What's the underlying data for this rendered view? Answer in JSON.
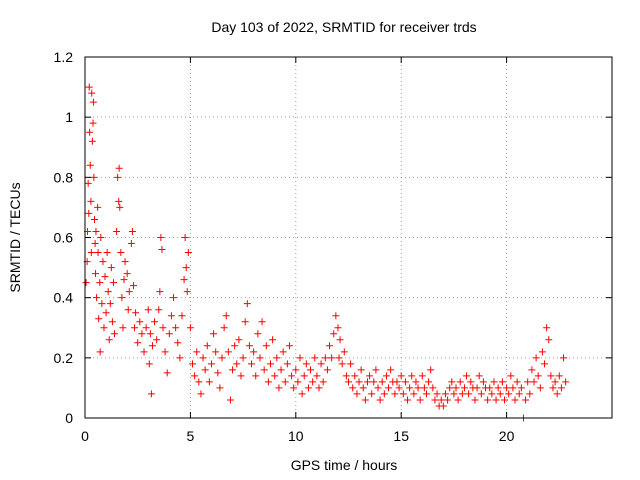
{
  "chart_data": {
    "type": "scatter",
    "title": "Day 103 of 2022, SRMTID for receiver trds",
    "xlabel": "GPS time / hours",
    "ylabel": "SRMTID / TECUs",
    "xlim": [
      0,
      25
    ],
    "ylim": [
      0,
      1.2
    ],
    "xticks": [
      0,
      5,
      10,
      15,
      20
    ],
    "xtick_labels": [
      "0",
      "5",
      "10",
      "15",
      "20"
    ],
    "yticks": [
      0,
      0.2,
      0.4,
      0.6,
      0.8,
      1.0,
      1.2
    ],
    "ytick_labels": [
      "0",
      "0.2",
      "0.4",
      "0.6",
      "0.8",
      "1",
      "1.2"
    ],
    "grid": true,
    "marker": "plus",
    "color": "#ff0000",
    "series": [
      {
        "name": "SRMTID",
        "points": [
          [
            0.05,
            0.45
          ],
          [
            0.1,
            0.52
          ],
          [
            0.12,
            0.62
          ],
          [
            0.15,
            0.78
          ],
          [
            0.18,
            0.68
          ],
          [
            0.2,
            1.1
          ],
          [
            0.22,
            0.95
          ],
          [
            0.25,
            0.84
          ],
          [
            0.28,
            0.72
          ],
          [
            0.3,
            0.55
          ],
          [
            0.32,
            1.08
          ],
          [
            0.35,
            0.92
          ],
          [
            0.38,
            0.98
          ],
          [
            0.4,
            1.05
          ],
          [
            0.42,
            0.8
          ],
          [
            0.45,
            0.66
          ],
          [
            0.48,
            0.58
          ],
          [
            0.5,
            0.48
          ],
          [
            0.52,
            0.62
          ],
          [
            0.55,
            0.4
          ],
          [
            0.6,
            0.7
          ],
          [
            0.62,
            0.55
          ],
          [
            0.65,
            0.33
          ],
          [
            0.7,
            0.45
          ],
          [
            0.72,
            0.22
          ],
          [
            0.75,
            0.6
          ],
          [
            0.8,
            0.38
          ],
          [
            0.85,
            0.52
          ],
          [
            0.9,
            0.3
          ],
          [
            0.95,
            0.47
          ],
          [
            1.0,
            0.35
          ],
          [
            1.05,
            0.55
          ],
          [
            1.1,
            0.42
          ],
          [
            1.15,
            0.26
          ],
          [
            1.2,
            0.38
          ],
          [
            1.25,
            0.5
          ],
          [
            1.3,
            0.32
          ],
          [
            1.35,
            0.45
          ],
          [
            1.4,
            0.28
          ],
          [
            1.5,
            0.62
          ],
          [
            1.55,
            0.8
          ],
          [
            1.6,
            0.72
          ],
          [
            1.62,
            0.83
          ],
          [
            1.65,
            0.7
          ],
          [
            1.7,
            0.55
          ],
          [
            1.75,
            0.4
          ],
          [
            1.8,
            0.3
          ],
          [
            1.85,
            0.46
          ],
          [
            1.9,
            0.52
          ],
          [
            2.0,
            0.48
          ],
          [
            2.05,
            0.36
          ],
          [
            2.1,
            0.42
          ],
          [
            2.2,
            0.58
          ],
          [
            2.25,
            0.62
          ],
          [
            2.3,
            0.44
          ],
          [
            2.35,
            0.3
          ],
          [
            2.4,
            0.35
          ],
          [
            2.5,
            0.25
          ],
          [
            2.6,
            0.32
          ],
          [
            2.7,
            0.28
          ],
          [
            2.8,
            0.22
          ],
          [
            2.9,
            0.3
          ],
          [
            3.0,
            0.36
          ],
          [
            3.05,
            0.18
          ],
          [
            3.1,
            0.28
          ],
          [
            3.15,
            0.08
          ],
          [
            3.2,
            0.24
          ],
          [
            3.3,
            0.32
          ],
          [
            3.4,
            0.26
          ],
          [
            3.5,
            0.36
          ],
          [
            3.55,
            0.42
          ],
          [
            3.6,
            0.6
          ],
          [
            3.65,
            0.56
          ],
          [
            3.7,
            0.3
          ],
          [
            3.8,
            0.22
          ],
          [
            3.9,
            0.15
          ],
          [
            4.0,
            0.28
          ],
          [
            4.1,
            0.34
          ],
          [
            4.2,
            0.4
          ],
          [
            4.3,
            0.3
          ],
          [
            4.4,
            0.25
          ],
          [
            4.5,
            0.2
          ],
          [
            4.6,
            0.34
          ],
          [
            4.7,
            0.46
          ],
          [
            4.75,
            0.6
          ],
          [
            4.8,
            0.5
          ],
          [
            4.85,
            0.42
          ],
          [
            4.9,
            0.55
          ],
          [
            5.0,
            0.3
          ],
          [
            5.1,
            0.18
          ],
          [
            5.2,
            0.14
          ],
          [
            5.3,
            0.22
          ],
          [
            5.4,
            0.12
          ],
          [
            5.5,
            0.08
          ],
          [
            5.6,
            0.2
          ],
          [
            5.7,
            0.16
          ],
          [
            5.8,
            0.24
          ],
          [
            5.9,
            0.12
          ],
          [
            6.0,
            0.18
          ],
          [
            6.1,
            0.28
          ],
          [
            6.2,
            0.22
          ],
          [
            6.3,
            0.15
          ],
          [
            6.4,
            0.1
          ],
          [
            6.5,
            0.2
          ],
          [
            6.6,
            0.3
          ],
          [
            6.7,
            0.34
          ],
          [
            6.8,
            0.22
          ],
          [
            6.9,
            0.06
          ],
          [
            7.0,
            0.16
          ],
          [
            7.1,
            0.24
          ],
          [
            7.2,
            0.18
          ],
          [
            7.3,
            0.26
          ],
          [
            7.4,
            0.14
          ],
          [
            7.5,
            0.2
          ],
          [
            7.6,
            0.32
          ],
          [
            7.7,
            0.38
          ],
          [
            7.8,
            0.24
          ],
          [
            7.9,
            0.18
          ],
          [
            8.0,
            0.22
          ],
          [
            8.1,
            0.14
          ],
          [
            8.2,
            0.28
          ],
          [
            8.3,
            0.2
          ],
          [
            8.4,
            0.32
          ],
          [
            8.5,
            0.16
          ],
          [
            8.6,
            0.24
          ],
          [
            8.7,
            0.12
          ],
          [
            8.8,
            0.18
          ],
          [
            8.9,
            0.26
          ],
          [
            9.0,
            0.14
          ],
          [
            9.1,
            0.2
          ],
          [
            9.2,
            0.1
          ],
          [
            9.3,
            0.16
          ],
          [
            9.4,
            0.22
          ],
          [
            9.5,
            0.12
          ],
          [
            9.6,
            0.18
          ],
          [
            9.7,
            0.24
          ],
          [
            9.8,
            0.14
          ],
          [
            9.9,
            0.1
          ],
          [
            10.0,
            0.16
          ],
          [
            10.1,
            0.12
          ],
          [
            10.2,
            0.2
          ],
          [
            10.3,
            0.08
          ],
          [
            10.4,
            0.14
          ],
          [
            10.5,
            0.18
          ],
          [
            10.6,
            0.1
          ],
          [
            10.7,
            0.16
          ],
          [
            10.8,
            0.12
          ],
          [
            10.9,
            0.2
          ],
          [
            11.0,
            0.14
          ],
          [
            11.1,
            0.1
          ],
          [
            11.2,
            0.18
          ],
          [
            11.3,
            0.12
          ],
          [
            11.4,
            0.2
          ],
          [
            11.5,
            0.16
          ],
          [
            11.6,
            0.24
          ],
          [
            11.7,
            0.2
          ],
          [
            11.8,
            0.28
          ],
          [
            11.9,
            0.34
          ],
          [
            12.0,
            0.3
          ],
          [
            12.05,
            0.2
          ],
          [
            12.1,
            0.26
          ],
          [
            12.2,
            0.18
          ],
          [
            12.3,
            0.22
          ],
          [
            12.4,
            0.14
          ],
          [
            12.5,
            0.12
          ],
          [
            12.6,
            0.18
          ],
          [
            12.7,
            0.1
          ],
          [
            12.8,
            0.14
          ],
          [
            12.9,
            0.08
          ],
          [
            13.0,
            0.12
          ],
          [
            13.1,
            0.16
          ],
          [
            13.2,
            0.1
          ],
          [
            13.3,
            0.06
          ],
          [
            13.4,
            0.12
          ],
          [
            13.5,
            0.14
          ],
          [
            13.6,
            0.08
          ],
          [
            13.7,
            0.12
          ],
          [
            13.8,
            0.16
          ],
          [
            13.9,
            0.1
          ],
          [
            14.0,
            0.06
          ],
          [
            14.1,
            0.12
          ],
          [
            14.2,
            0.08
          ],
          [
            14.3,
            0.14
          ],
          [
            14.4,
            0.1
          ],
          [
            14.5,
            0.16
          ],
          [
            14.6,
            0.12
          ],
          [
            14.7,
            0.08
          ],
          [
            14.8,
            0.12
          ],
          [
            14.9,
            0.1
          ],
          [
            15.0,
            0.14
          ],
          [
            15.1,
            0.08
          ],
          [
            15.2,
            0.12
          ],
          [
            15.3,
            0.06
          ],
          [
            15.4,
            0.1
          ],
          [
            15.5,
            0.14
          ],
          [
            15.6,
            0.08
          ],
          [
            15.7,
            0.12
          ],
          [
            15.8,
            0.1
          ],
          [
            15.9,
            0.06
          ],
          [
            16.0,
            0.14
          ],
          [
            16.1,
            0.1
          ],
          [
            16.2,
            0.08
          ],
          [
            16.3,
            0.12
          ],
          [
            16.4,
            0.16
          ],
          [
            16.5,
            0.1
          ],
          [
            16.6,
            0.06
          ],
          [
            16.7,
            0.08
          ],
          [
            16.8,
            0.04
          ],
          [
            16.9,
            0.06
          ],
          [
            17.0,
            0.04
          ],
          [
            17.1,
            0.08
          ],
          [
            17.2,
            0.06
          ],
          [
            17.3,
            0.1
          ],
          [
            17.4,
            0.12
          ],
          [
            17.5,
            0.08
          ],
          [
            17.6,
            0.1
          ],
          [
            17.7,
            0.06
          ],
          [
            17.8,
            0.12
          ],
          [
            17.9,
            0.08
          ],
          [
            18.0,
            0.1
          ],
          [
            18.1,
            0.14
          ],
          [
            18.2,
            0.08
          ],
          [
            18.3,
            0.12
          ],
          [
            18.4,
            0.1
          ],
          [
            18.5,
            0.06
          ],
          [
            18.6,
            0.1
          ],
          [
            18.7,
            0.14
          ],
          [
            18.8,
            0.08
          ],
          [
            18.9,
            0.12
          ],
          [
            19.0,
            0.1
          ],
          [
            19.1,
            0.06
          ],
          [
            19.2,
            0.1
          ],
          [
            19.3,
            0.08
          ],
          [
            19.4,
            0.12
          ],
          [
            19.5,
            0.06
          ],
          [
            19.6,
            0.1
          ],
          [
            19.7,
            0.08
          ],
          [
            19.8,
            0.12
          ],
          [
            19.9,
            0.06
          ],
          [
            20.0,
            0.1
          ],
          [
            20.1,
            0.08
          ],
          [
            20.2,
            0.14
          ],
          [
            20.3,
            0.1
          ],
          [
            20.4,
            0.06
          ],
          [
            20.5,
            0.12
          ],
          [
            20.6,
            0.08
          ],
          [
            20.7,
            0.1
          ],
          [
            20.8,
            0.0
          ],
          [
            20.9,
            0.06
          ],
          [
            21.0,
            0.12
          ],
          [
            21.1,
            0.08
          ],
          [
            21.2,
            0.16
          ],
          [
            21.3,
            0.12
          ],
          [
            21.4,
            0.2
          ],
          [
            21.5,
            0.14
          ],
          [
            21.6,
            0.1
          ],
          [
            21.7,
            0.22
          ],
          [
            21.8,
            0.18
          ],
          [
            21.9,
            0.3
          ],
          [
            22.0,
            0.26
          ],
          [
            22.1,
            0.14
          ],
          [
            22.2,
            0.1
          ],
          [
            22.3,
            0.12
          ],
          [
            22.4,
            0.08
          ],
          [
            22.5,
            0.14
          ],
          [
            22.6,
            0.1
          ],
          [
            22.7,
            0.2
          ],
          [
            22.8,
            0.12
          ]
        ]
      }
    ]
  }
}
